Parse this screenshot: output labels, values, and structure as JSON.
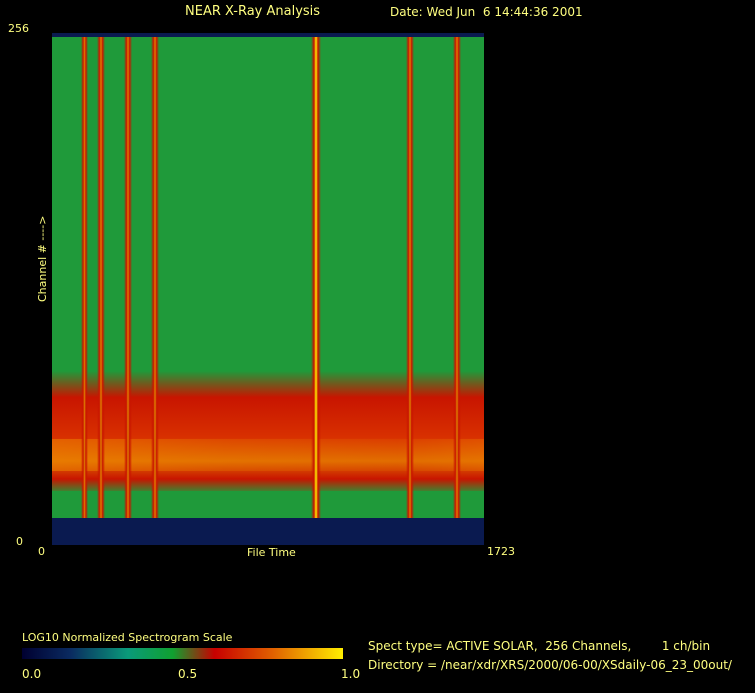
{
  "header": {
    "title": "NEAR X-Ray Analysis",
    "date": "Date: Wed Jun  6 14:44:36 2001"
  },
  "chart_data": {
    "type": "heatmap",
    "title": "NEAR X-Ray Analysis",
    "xlabel": "File Time",
    "ylabel": "Channel # ---->",
    "xlim": [
      0,
      1723
    ],
    "ylim": [
      0,
      256
    ],
    "x_ticks": [
      "0",
      "1723"
    ],
    "y_ticks": [
      "0",
      "256"
    ],
    "background_level": 0.45,
    "emission_band": {
      "channel_low": 27,
      "channel_high": 87,
      "peak_channel": 45,
      "level": 0.7
    },
    "flares": [
      {
        "file_time": 130,
        "level": 0.6
      },
      {
        "file_time": 195,
        "level": 0.75
      },
      {
        "file_time": 303,
        "level": 0.7
      },
      {
        "file_time": 411,
        "level": 0.8
      },
      {
        "file_time": 1053,
        "level": 1.0
      },
      {
        "file_time": 1428,
        "level": 0.75
      },
      {
        "file_time": 1615,
        "level": 0.75
      }
    ],
    "colors": {
      "background": "#1f9a3a",
      "band": "#d01500",
      "peak": "#ffee00",
      "empty": "#0a1a50"
    }
  },
  "scale": {
    "label": "LOG10 Normalized Spectrogram Scale",
    "ticks": [
      "0.0",
      "0.5",
      "1.0"
    ]
  },
  "info": {
    "spect": "Spect type= ACTIVE SOLAR,  256 Channels,        1 ch/bin",
    "directory": "Directory = /near/xdr/XRS/2000/06-00/XSdaily-06_23_00out/"
  }
}
